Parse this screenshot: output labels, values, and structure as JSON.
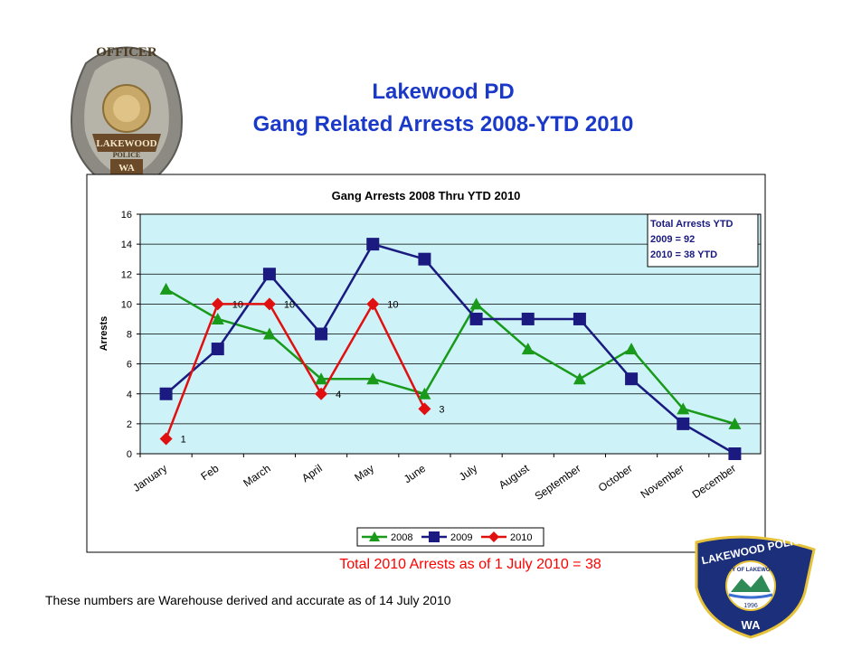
{
  "slide": {
    "title_line1": "Lakewood PD",
    "title_line2": "Gang Related Arrests 2008-YTD 2010",
    "total_note": "Total 2010 Arrests as of 1 July 2010 = 38",
    "footnote": "These numbers are Warehouse derived and accurate as of  14 July 2010",
    "badge_left_text": [
      "OFFICER",
      "LAKEWOOD",
      "POLICE",
      "WA"
    ],
    "patch_right_text": [
      "LAKEWOOD POLICE",
      "CITY OF LAKEWOOD",
      "1996",
      "WA"
    ]
  },
  "chart_data": {
    "type": "line",
    "title": "Gang Arrests 2008 Thru YTD 2010",
    "xlabel": "",
    "ylabel": "Arrests",
    "ylim": [
      0,
      16
    ],
    "yticks": [
      0,
      2,
      4,
      6,
      8,
      10,
      12,
      14,
      16
    ],
    "grid": true,
    "categories": [
      "January",
      "Feb",
      "March",
      "April",
      "May",
      "June",
      "July",
      "August",
      "September",
      "October",
      "November",
      "December"
    ],
    "series": [
      {
        "name": "2008",
        "color": "#1a9a1a",
        "marker": "triangle",
        "values": [
          11,
          9,
          8,
          5,
          5,
          4,
          10,
          7,
          5,
          7,
          3,
          2
        ]
      },
      {
        "name": "2009",
        "color": "#1a1a80",
        "marker": "square",
        "values": [
          4,
          7,
          12,
          8,
          14,
          13,
          9,
          9,
          9,
          5,
          2,
          0
        ]
      },
      {
        "name": "2010",
        "color": "#e01010",
        "marker": "diamond",
        "values": [
          1,
          10,
          10,
          4,
          10,
          3,
          null,
          null,
          null,
          null,
          null,
          null
        ]
      }
    ],
    "data_labels": [
      {
        "series": "2010",
        "index": 0,
        "text": "1"
      },
      {
        "series": "2010",
        "index": 1,
        "text": "10"
      },
      {
        "series": "2010",
        "index": 2,
        "text": "10"
      },
      {
        "series": "2010",
        "index": 3,
        "text": "4"
      },
      {
        "series": "2010",
        "index": 4,
        "text": "10"
      },
      {
        "series": "2010",
        "index": 5,
        "text": "3"
      }
    ],
    "annotation": [
      "Total Arrests YTD",
      "2009 = 92",
      "2010 = 38 YTD"
    ],
    "legend_position": "bottom",
    "plot_background": "#cdf3f8"
  }
}
